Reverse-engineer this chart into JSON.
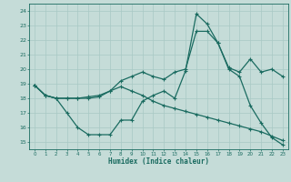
{
  "xlabel": "Humidex (Indice chaleur)",
  "xlim": [
    -0.5,
    23.5
  ],
  "ylim": [
    14.5,
    24.5
  ],
  "xticks": [
    0,
    1,
    2,
    3,
    4,
    5,
    6,
    7,
    8,
    9,
    10,
    11,
    12,
    13,
    14,
    15,
    16,
    17,
    18,
    19,
    20,
    21,
    22,
    23
  ],
  "yticks": [
    15,
    16,
    17,
    18,
    19,
    20,
    21,
    22,
    23,
    24
  ],
  "bg_color": "#c5dcd8",
  "grid_color": "#a8c9c4",
  "line_color": "#1a6b60",
  "curves": [
    {
      "x": [
        0,
        1,
        2,
        3,
        4,
        5,
        6,
        7,
        8,
        9,
        10,
        11,
        12,
        13,
        14,
        15,
        16,
        17,
        18,
        19,
        20,
        21,
        22,
        23
      ],
      "y": [
        18.9,
        18.2,
        18.0,
        18.0,
        18.0,
        18.1,
        18.2,
        18.5,
        19.2,
        19.5,
        19.8,
        19.5,
        19.3,
        19.8,
        20.0,
        22.6,
        22.6,
        21.8,
        20.1,
        19.8,
        20.7,
        19.8,
        20.0,
        19.5
      ]
    },
    {
      "x": [
        0,
        1,
        2,
        3,
        4,
        5,
        6,
        7,
        8,
        9,
        10,
        11,
        12,
        13,
        14,
        15,
        16,
        17,
        18,
        19,
        20,
        21,
        22,
        23
      ],
      "y": [
        18.9,
        18.2,
        18.0,
        17.0,
        16.0,
        15.5,
        15.5,
        15.5,
        16.5,
        16.5,
        17.8,
        18.2,
        18.5,
        18.0,
        19.9,
        23.8,
        23.1,
        21.8,
        20.0,
        19.5,
        17.5,
        16.3,
        15.3,
        14.8
      ]
    },
    {
      "x": [
        0,
        1,
        2,
        3,
        4,
        5,
        6,
        7,
        8,
        9,
        10,
        11,
        12,
        13,
        14,
        15,
        16,
        17,
        18,
        19,
        20,
        21,
        22,
        23
      ],
      "y": [
        18.9,
        18.2,
        18.0,
        18.0,
        18.0,
        18.0,
        18.1,
        18.5,
        18.8,
        18.5,
        18.2,
        17.8,
        17.5,
        17.3,
        17.1,
        16.9,
        16.7,
        16.5,
        16.3,
        16.1,
        15.9,
        15.7,
        15.4,
        15.1
      ]
    }
  ]
}
